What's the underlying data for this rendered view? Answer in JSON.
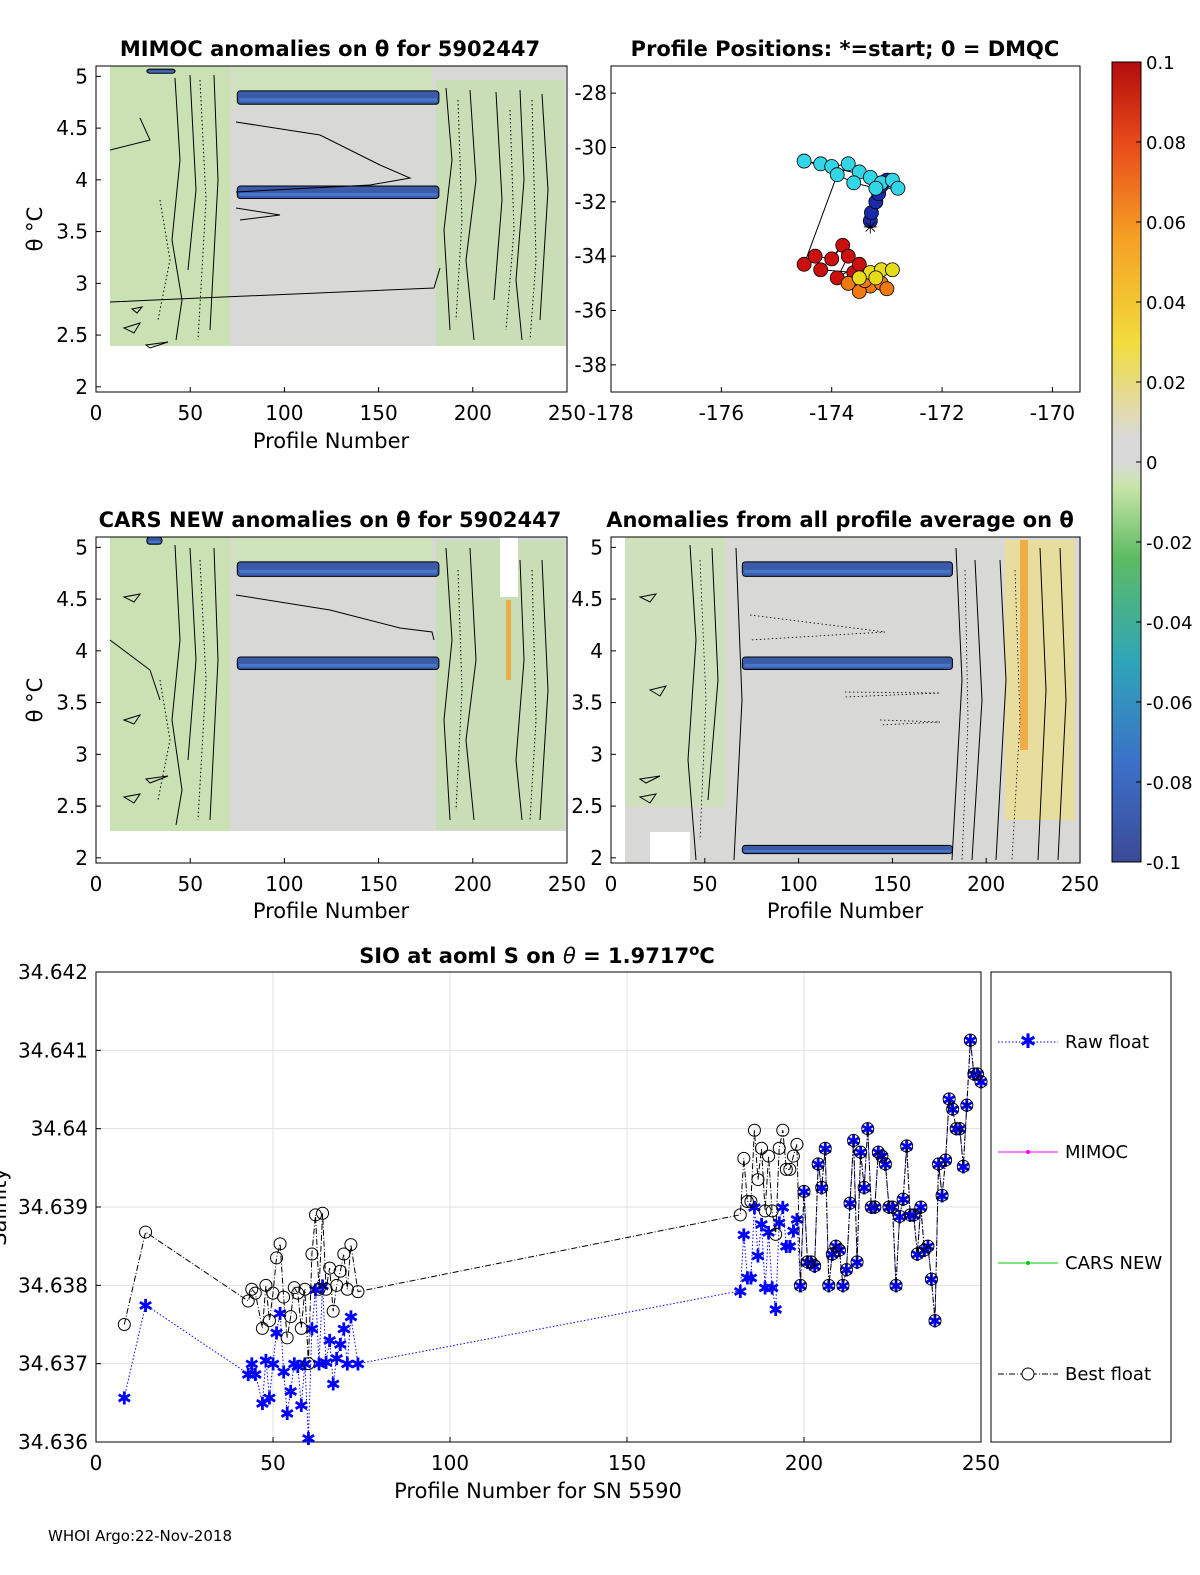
{
  "footer": "WHOI Argo:22-Nov-2018",
  "colors": {
    "raw_float": "#0000ff",
    "mimoc": "#ff00ff",
    "cars_new": "#00cc00",
    "best_float": "#000000",
    "anomaly_band": "#3b5aa8",
    "background_zero": "#d9d9d9"
  },
  "colorbar": {
    "range": [
      -0.1,
      0.1
    ],
    "ticks": [
      "0.1",
      "0.08",
      "0.06",
      "0.04",
      "0.02",
      "0",
      "-0.02",
      "-0.04",
      "-0.06",
      "-0.08",
      "-0.1"
    ]
  },
  "chart_data": [
    {
      "id": "mimoc",
      "type": "heatmap",
      "title": "MIMOC anomalies on θ  for 5902447",
      "xlabel": "Profile Number",
      "ylabel": "θ °C",
      "xlim": [
        0,
        250
      ],
      "ylim": [
        1.95,
        5.1
      ],
      "xticks": [
        "0",
        "50",
        "100",
        "150",
        "200",
        "250"
      ],
      "yticks": [
        "2",
        "2.5",
        "3",
        "3.5",
        "4",
        "4.5",
        "5"
      ],
      "bands": [
        [
          75,
          182,
          4.73,
          4.86
        ],
        [
          75,
          182,
          3.82,
          3.94
        ],
        [
          27,
          42,
          5.03,
          5.07
        ]
      ]
    },
    {
      "id": "positions",
      "type": "scatter",
      "title": "Profile Positions: *=start; 0 = DMQC",
      "xlim": [
        -178,
        -169.5
      ],
      "ylim": [
        -39,
        -27
      ],
      "xticks": [
        "-178",
        "-176",
        "-174",
        "-172",
        "-170"
      ],
      "yticks": [
        "-28",
        "-30",
        "-32",
        "-34",
        "-36",
        "-38"
      ],
      "start": [
        -173.3,
        -32.9
      ],
      "clusters": [
        {
          "name": "early",
          "color": "#1a2aa8",
          "points": [
            [
              -173.3,
              -32.7
            ],
            [
              -173.28,
              -32.4
            ],
            [
              -173.2,
              -32.0
            ],
            [
              -173.15,
              -31.7
            ],
            [
              -173.1,
              -31.4
            ],
            [
              -173.0,
              -31.2
            ]
          ]
        },
        {
          "name": "mid",
          "color": "#33d6e6",
          "points": [
            [
              -174.5,
              -30.5
            ],
            [
              -174.2,
              -30.6
            ],
            [
              -174.0,
              -30.7
            ],
            [
              -173.7,
              -30.6
            ],
            [
              -173.5,
              -30.9
            ],
            [
              -173.3,
              -31.1
            ],
            [
              -173.1,
              -31.3
            ],
            [
              -172.9,
              -31.2
            ],
            [
              -172.8,
              -31.5
            ],
            [
              -173.2,
              -31.5
            ],
            [
              -173.6,
              -31.3
            ],
            [
              -173.9,
              -31.0
            ]
          ]
        },
        {
          "name": "late-red",
          "color": "#cc1010",
          "points": [
            [
              -174.5,
              -34.3
            ],
            [
              -174.3,
              -34.0
            ],
            [
              -174.0,
              -34.1
            ],
            [
              -173.8,
              -33.6
            ],
            [
              -174.2,
              -34.5
            ],
            [
              -173.6,
              -34.6
            ],
            [
              -173.5,
              -34.3
            ],
            [
              -173.9,
              -34.8
            ],
            [
              -173.7,
              -34.0
            ]
          ]
        },
        {
          "name": "late-orange",
          "color": "#f07a10",
          "points": [
            [
              -173.3,
              -35.1
            ],
            [
              -173.1,
              -35.0
            ],
            [
              -173.5,
              -35.3
            ],
            [
              -173.7,
              -35.0
            ],
            [
              -173.0,
              -35.2
            ],
            [
              -173.4,
              -34.9
            ]
          ]
        },
        {
          "name": "late-yellow",
          "color": "#e6dc1a",
          "points": [
            [
              -173.3,
              -34.6
            ],
            [
              -173.1,
              -34.5
            ],
            [
              -172.9,
              -34.5
            ],
            [
              -173.5,
              -34.8
            ],
            [
              -173.2,
              -34.8
            ]
          ]
        }
      ]
    },
    {
      "id": "cars",
      "type": "heatmap",
      "title": "CARS NEW anomalies on θ for 5902447",
      "xlabel": "Profile Number",
      "ylabel": "θ °C",
      "xlim": [
        0,
        250
      ],
      "ylim": [
        1.95,
        5.1
      ],
      "xticks": [
        "0",
        "50",
        "100",
        "150",
        "200",
        "250"
      ],
      "yticks": [
        "2",
        "2.5",
        "3",
        "3.5",
        "4",
        "4.5",
        "5"
      ],
      "bands": [
        [
          75,
          182,
          4.72,
          4.86
        ],
        [
          75,
          182,
          3.82,
          3.94
        ],
        [
          27,
          35,
          5.03,
          5.1
        ]
      ]
    },
    {
      "id": "average",
      "type": "heatmap",
      "title": "Anomalies from all profile average on θ",
      "xlabel": "Profile Number",
      "xlim": [
        0,
        250
      ],
      "ylim": [
        1.95,
        5.1
      ],
      "xticks": [
        "0",
        "50",
        "100",
        "150",
        "200",
        "250"
      ],
      "yticks": [
        "2",
        "2.5",
        "3",
        "3.5",
        "4",
        "4.5",
        "5"
      ],
      "bands": [
        [
          70,
          182,
          4.72,
          4.86
        ],
        [
          70,
          182,
          3.82,
          3.94
        ],
        [
          70,
          182,
          2.04,
          2.12
        ]
      ]
    },
    {
      "id": "salinity",
      "type": "line",
      "title": "SIO at aoml S on θ = 1.9717°C",
      "title_parts": [
        "SIO at aoml S on ",
        "θ",
        " = 1.9717",
        "o",
        "C"
      ],
      "xlabel": "Profile Number for SN 5590",
      "ylabel": "Salinity",
      "xlim": [
        0,
        250
      ],
      "ylim": [
        34.636,
        34.642
      ],
      "xticks": [
        "0",
        "50",
        "100",
        "150",
        "200",
        "250"
      ],
      "yticks": [
        "34.636",
        "34.637",
        "34.638",
        "34.639",
        "34.64",
        "34.641",
        "34.642"
      ],
      "legend": [
        "Raw float",
        "MIMOC",
        "CARS NEW",
        "Best float"
      ],
      "legend_position": "outside-right",
      "series": [
        {
          "name": "Raw float",
          "marker": "asterisk",
          "x": [
            8,
            14,
            43,
            44,
            45,
            47,
            48,
            49,
            50,
            51,
            52,
            53,
            54,
            55,
            56,
            57,
            58,
            59,
            60,
            61,
            62,
            63,
            64,
            65,
            66,
            67,
            68,
            69,
            70,
            71,
            72,
            74,
            182,
            183,
            184,
            185,
            186,
            187,
            188,
            189,
            190,
            191,
            192,
            193,
            194,
            195,
            196,
            197,
            198,
            199,
            200,
            201,
            202,
            203,
            204,
            205,
            206,
            207,
            208,
            209,
            210,
            211,
            212,
            213,
            214,
            215,
            216,
            217,
            218,
            219,
            220,
            221,
            222,
            223,
            224,
            225,
            226,
            227,
            228,
            229,
            230,
            231,
            232,
            233,
            234,
            235,
            236,
            237,
            238,
            239,
            240,
            241,
            242,
            243,
            244,
            245,
            246,
            247,
            248,
            249,
            250
          ],
          "y": [
            34.63657,
            34.63775,
            34.63687,
            34.637,
            34.63687,
            34.6365,
            34.63705,
            34.63657,
            34.637,
            34.6374,
            34.63765,
            34.6369,
            34.63637,
            34.63665,
            34.637,
            34.63697,
            34.63647,
            34.637,
            34.63605,
            34.63745,
            34.63795,
            34.637,
            34.638,
            34.63702,
            34.6373,
            34.63675,
            34.63707,
            34.63725,
            34.63745,
            34.637,
            34.6376,
            34.637,
            34.63793,
            34.63865,
            34.6381,
            34.6381,
            34.639,
            34.63838,
            34.63878,
            34.63797,
            34.63868,
            34.63797,
            34.6377,
            34.6388,
            34.639,
            34.6385,
            34.6385,
            34.6387,
            34.63885,
            34.638,
            34.6392,
            34.6383,
            34.6383,
            34.63825,
            34.63955,
            34.63925,
            34.63975,
            34.638,
            34.6384,
            34.6385,
            34.63845,
            34.638,
            34.6382,
            34.63905,
            34.63985,
            34.6383,
            34.6397,
            34.63925,
            34.64,
            34.639,
            34.639,
            34.6397,
            34.63965,
            34.63955,
            34.639,
            34.639,
            34.638,
            34.63888,
            34.6391,
            34.63978,
            34.6389,
            34.6389,
            34.6384,
            34.639,
            34.63845,
            34.6385,
            34.63808,
            34.63755,
            34.63955,
            34.63915,
            34.6396,
            34.64038,
            34.64025,
            34.64,
            34.64,
            34.63952,
            34.6403,
            34.64113,
            34.6407,
            34.6407,
            34.6406
          ]
        },
        {
          "name": "Best float",
          "marker": "circle",
          "x": [
            8,
            14,
            43,
            44,
            45,
            47,
            48,
            49,
            50,
            51,
            52,
            53,
            54,
            55,
            56,
            57,
            58,
            59,
            60,
            61,
            62,
            63,
            64,
            65,
            66,
            67,
            68,
            69,
            70,
            71,
            72,
            74,
            182,
            183,
            184,
            185,
            186,
            187,
            188,
            189,
            190,
            191,
            192,
            193,
            194,
            195,
            196,
            197,
            198,
            199,
            200,
            201,
            202,
            203,
            204,
            205,
            206,
            207,
            208,
            209,
            210,
            211,
            212,
            213,
            214,
            215,
            216,
            217,
            218,
            219,
            220,
            221,
            222,
            223,
            224,
            225,
            226,
            227,
            228,
            229,
            230,
            231,
            232,
            233,
            234,
            235,
            236,
            237,
            238,
            239,
            240,
            241,
            242,
            243,
            244,
            245,
            246,
            247,
            248,
            249,
            250
          ],
          "y": [
            34.6375,
            34.63868,
            34.6378,
            34.63795,
            34.6379,
            34.63745,
            34.638,
            34.63755,
            34.6379,
            34.63835,
            34.63853,
            34.63785,
            34.63733,
            34.6376,
            34.63797,
            34.6379,
            34.63745,
            34.63795,
            34.637,
            34.6384,
            34.6389,
            34.63795,
            34.63892,
            34.63795,
            34.63822,
            34.63767,
            34.638,
            34.63818,
            34.6384,
            34.63795,
            34.63852,
            34.63792,
            34.6389,
            34.63962,
            34.63907,
            34.63907,
            34.63998,
            34.63935,
            34.63975,
            34.63895,
            34.63965,
            34.63895,
            34.63865,
            34.63975,
            34.63998,
            34.63948,
            34.63948,
            34.63965,
            34.6398,
            34.638,
            34.6392,
            34.6383,
            34.6383,
            34.63825,
            34.63955,
            34.63925,
            34.63975,
            34.638,
            34.6384,
            34.6385,
            34.63845,
            34.638,
            34.6382,
            34.63905,
            34.63985,
            34.6383,
            34.6397,
            34.63925,
            34.64,
            34.639,
            34.639,
            34.6397,
            34.63965,
            34.63955,
            34.639,
            34.639,
            34.638,
            34.63888,
            34.6391,
            34.63978,
            34.6389,
            34.6389,
            34.6384,
            34.639,
            34.63845,
            34.6385,
            34.63808,
            34.63755,
            34.63955,
            34.63915,
            34.6396,
            34.64038,
            34.64025,
            34.64,
            34.64,
            34.63952,
            34.6403,
            34.64113,
            34.6407,
            34.6407,
            34.6406
          ]
        }
      ]
    }
  ]
}
